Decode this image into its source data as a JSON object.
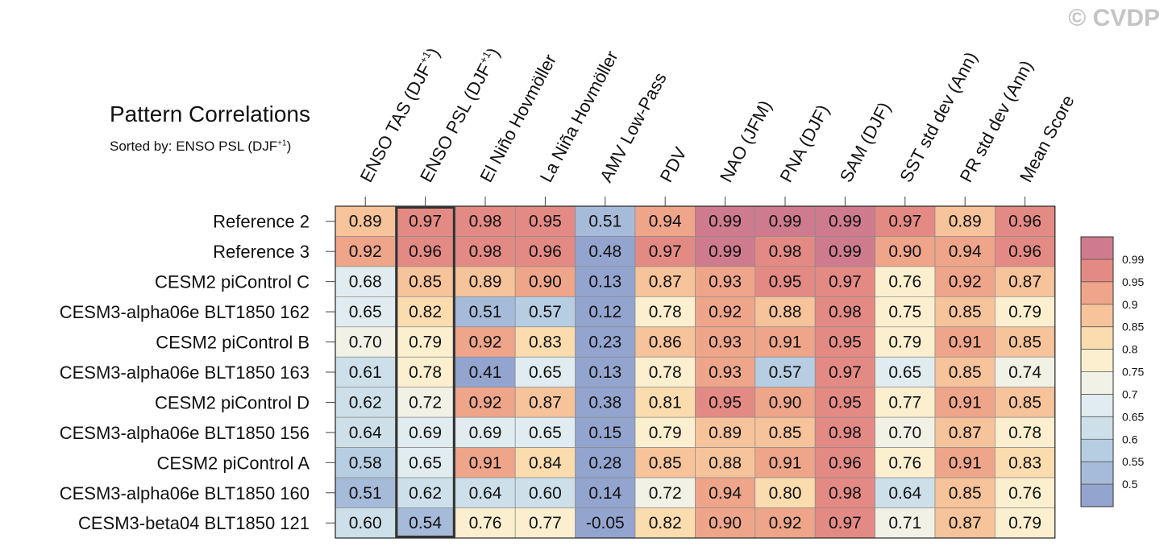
{
  "watermark": "© CVDP",
  "chart_data": {
    "type": "heatmap",
    "title": "Pattern Correlations",
    "subtitle_prefix": "Sorted by: ENSO PSL (DJF",
    "subtitle_sup": "+1",
    "subtitle_suffix": ")",
    "sorted_column": 1,
    "columns": [
      {
        "label": "ENSO TAS (DJF",
        "sup": "+1",
        "suffix": ")"
      },
      {
        "label": "ENSO PSL (DJF",
        "sup": "+1",
        "suffix": ")"
      },
      {
        "label": "El Niño Hovmöller",
        "sup": "",
        "suffix": ""
      },
      {
        "label": "La Niña Hovmöller",
        "sup": "",
        "suffix": ""
      },
      {
        "label": "AMV Low-Pass",
        "sup": "",
        "suffix": ""
      },
      {
        "label": "PDV",
        "sup": "",
        "suffix": ""
      },
      {
        "label": "NAO (JFM)",
        "sup": "",
        "suffix": ""
      },
      {
        "label": "PNA (DJF)",
        "sup": "",
        "suffix": ""
      },
      {
        "label": "SAM (DJF)",
        "sup": "",
        "suffix": ""
      },
      {
        "label": "SST std dev (Ann)",
        "sup": "",
        "suffix": ""
      },
      {
        "label": "PR std dev (Ann)",
        "sup": "",
        "suffix": ""
      },
      {
        "label": "Mean Score",
        "sup": "",
        "suffix": ""
      }
    ],
    "rows": [
      "Reference 2",
      "Reference 3",
      "CESM2 piControl C",
      "CESM3-alpha06e BLT1850 162",
      "CESM2 piControl B",
      "CESM3-alpha06e BLT1850 163",
      "CESM2 piControl D",
      "CESM3-alpha06e BLT1850 156",
      "CESM2 piControl A",
      "CESM3-alpha06e BLT1850 160",
      "CESM3-beta04 BLT1850 121"
    ],
    "values": [
      [
        "0.89",
        "0.97",
        "0.98",
        "0.95",
        "0.51",
        "0.94",
        "0.99",
        "0.99",
        "0.99",
        "0.97",
        "0.89",
        "0.96"
      ],
      [
        "0.92",
        "0.96",
        "0.98",
        "0.96",
        "0.48",
        "0.97",
        "0.99",
        "0.98",
        "0.99",
        "0.90",
        "0.94",
        "0.96"
      ],
      [
        "0.68",
        "0.85",
        "0.89",
        "0.90",
        "0.13",
        "0.87",
        "0.93",
        "0.95",
        "0.97",
        "0.76",
        "0.92",
        "0.87"
      ],
      [
        "0.65",
        "0.82",
        "0.51",
        "0.57",
        "0.12",
        "0.78",
        "0.92",
        "0.88",
        "0.98",
        "0.75",
        "0.85",
        "0.79"
      ],
      [
        "0.70",
        "0.79",
        "0.92",
        "0.83",
        "0.23",
        "0.86",
        "0.93",
        "0.91",
        "0.95",
        "0.79",
        "0.91",
        "0.85"
      ],
      [
        "0.61",
        "0.78",
        "0.41",
        "0.65",
        "0.13",
        "0.78",
        "0.93",
        "0.57",
        "0.97",
        "0.65",
        "0.85",
        "0.74"
      ],
      [
        "0.62",
        "0.72",
        "0.92",
        "0.87",
        "0.38",
        "0.81",
        "0.95",
        "0.90",
        "0.95",
        "0.77",
        "0.91",
        "0.85"
      ],
      [
        "0.64",
        "0.69",
        "0.69",
        "0.65",
        "0.15",
        "0.79",
        "0.89",
        "0.85",
        "0.98",
        "0.70",
        "0.87",
        "0.78"
      ],
      [
        "0.58",
        "0.65",
        "0.91",
        "0.84",
        "0.28",
        "0.85",
        "0.88",
        "0.91",
        "0.96",
        "0.76",
        "0.91",
        "0.83"
      ],
      [
        "0.51",
        "0.62",
        "0.64",
        "0.60",
        "0.14",
        "0.72",
        "0.94",
        "0.80",
        "0.98",
        "0.64",
        "0.85",
        "0.76"
      ],
      [
        "0.60",
        "0.54",
        "0.76",
        "0.77",
        "-0.05",
        "0.82",
        "0.90",
        "0.92",
        "0.97",
        "0.71",
        "0.87",
        "0.79"
      ]
    ],
    "colorbar": {
      "levels": [
        "0.5",
        "0.55",
        "0.6",
        "0.65",
        "0.7",
        "0.75",
        "0.8",
        "0.85",
        "0.9",
        "0.95",
        "0.99"
      ],
      "colors": [
        "#93a4cf",
        "#a6bad9",
        "#b7cde2",
        "#cde0ea",
        "#e0ecf0",
        "#f1f1e6",
        "#fbefcf",
        "#fbdcae",
        "#f6c39a",
        "#eea58a",
        "#e48a85",
        "#cf7b8e"
      ]
    }
  }
}
